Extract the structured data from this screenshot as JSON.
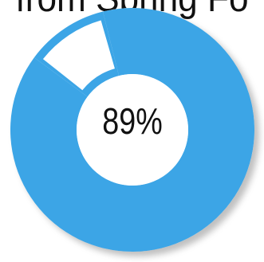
{
  "caption": "from Spring Fo",
  "colors": {
    "ring": "#3ca5e6",
    "gap": "#ffffff",
    "shadow": "#8c8c8c",
    "text": "#111111"
  },
  "chart_data": {
    "type": "pie",
    "subtype": "donut",
    "center_label": "89%",
    "slices": [
      {
        "value": 89,
        "color": "#3ca5e6"
      },
      {
        "value": 11,
        "color": "#ffffff"
      }
    ]
  }
}
